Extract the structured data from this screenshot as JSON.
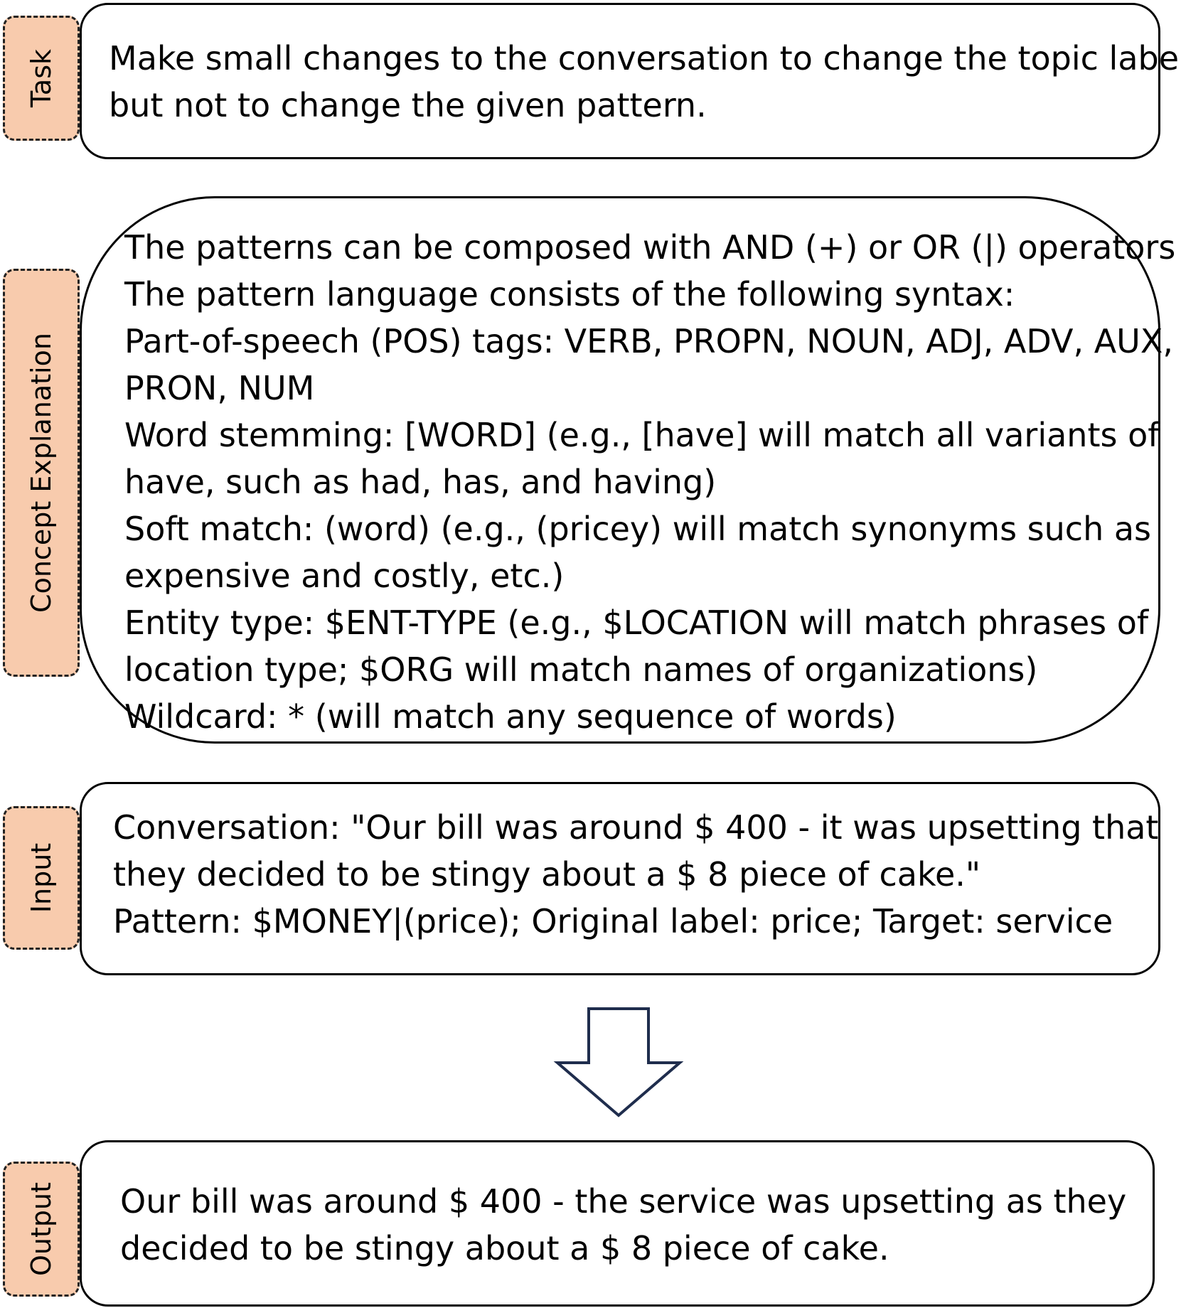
{
  "sections": {
    "task": {
      "tab_label": "Task",
      "lines": [
        "Make small changes to the conversation to change the topic label,",
        "but not to change the given pattern."
      ]
    },
    "concept": {
      "tab_label": "Concept Explanation",
      "lines": [
        "The patterns can be composed with AND (+) or OR (|) operators",
        "The pattern language consists of the following syntax:",
        "Part-of-speech (POS) tags: VERB, PROPN, NOUN, ADJ, ADV, AUX,",
        "PRON, NUM",
        "Word stemming: [WORD] (e.g., [have] will match all variants of",
        "have, such as had, has, and having)",
        "Soft match: (word) (e.g., (pricey) will match synonyms such as",
        "expensive and costly, etc.)",
        "Entity type: $ENT-TYPE (e.g., $LOCATION will match phrases of",
        "location type; $ORG will match names of organizations)",
        "Wildcard: * (will match any sequence of words)"
      ]
    },
    "input": {
      "tab_label": "Input",
      "lines": [
        "Conversation: \"Our bill was around $ 400 - it was upsetting that",
        "they decided to be stingy about a $ 8 piece of cake.\"",
        "Pattern: $MONEY|(price); Original label: price; Target: service"
      ]
    },
    "output": {
      "tab_label": "Output",
      "lines": [
        "Our bill was around $ 400 - the service was upsetting as they",
        "decided to be stingy about a $ 8 piece of cake."
      ]
    }
  },
  "colors": {
    "tab_fill": "#f8cbad",
    "arrow_stroke": "#1f2d4d"
  }
}
